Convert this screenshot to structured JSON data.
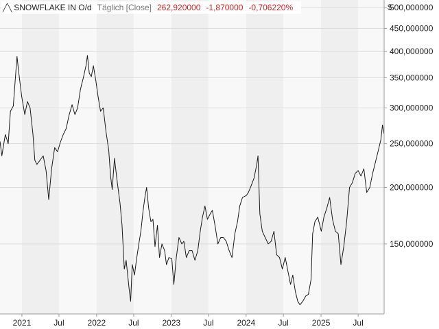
{
  "legend": {
    "symbol": "╱╲",
    "name": "SNOWFLAKE IN O/d",
    "frequency": "Täglich [Close]",
    "last": "262,920000",
    "change": "-1,870000",
    "change_pct": "-0,706220%"
  },
  "currency": "$",
  "colors": {
    "line": "#1a1a1a",
    "band_light": "#f8f8f8",
    "band_dark": "#efefef",
    "grid": "#dcdcdc",
    "negative": "#d11f1f"
  },
  "chart_data": {
    "type": "line",
    "title": "SNOWFLAKE IN O/d",
    "xlabel": "",
    "ylabel": "$",
    "y_scale": "log",
    "ylim": [
      105,
      520
    ],
    "xlim": [
      "2020-09-16",
      "2025-11-05"
    ],
    "grid": true,
    "legend_position": "top-left",
    "x_ticks": [
      {
        "label": "2021",
        "date": "2021-01-01"
      },
      {
        "label": "Jul",
        "date": "2021-07-01"
      },
      {
        "label": "2022",
        "date": "2022-01-01"
      },
      {
        "label": "Jul",
        "date": "2022-07-01"
      },
      {
        "label": "2023",
        "date": "2023-01-01"
      },
      {
        "label": "Jul",
        "date": "2023-07-01"
      },
      {
        "label": "2024",
        "date": "2024-01-01"
      },
      {
        "label": "Jul",
        "date": "2024-07-01"
      },
      {
        "label": "2025",
        "date": "2025-01-01"
      },
      {
        "label": "Jul",
        "date": "2025-07-01"
      }
    ],
    "y_ticks": [
      {
        "label": "500,000000",
        "value": 500
      },
      {
        "label": "450,000000",
        "value": 450
      },
      {
        "label": "400,000000",
        "value": 400
      },
      {
        "label": "350,000000",
        "value": 350
      },
      {
        "label": "300,000000",
        "value": 300
      },
      {
        "label": "250,000000",
        "value": 250
      },
      {
        "label": "200,000000",
        "value": 200
      },
      {
        "label": "150,000000",
        "value": 150
      }
    ],
    "series": [
      {
        "name": "SNOWFLAKE IN O/d",
        "points": [
          [
            "2020-09-16",
            253
          ],
          [
            "2020-09-25",
            235
          ],
          [
            "2020-10-12",
            262
          ],
          [
            "2020-10-26",
            250
          ],
          [
            "2020-11-06",
            295
          ],
          [
            "2020-11-20",
            303
          ],
          [
            "2020-12-08",
            390
          ],
          [
            "2020-12-18",
            355
          ],
          [
            "2020-12-31",
            318
          ],
          [
            "2021-01-15",
            290
          ],
          [
            "2021-01-28",
            310
          ],
          [
            "2021-02-10",
            300
          ],
          [
            "2021-02-24",
            262
          ],
          [
            "2021-03-05",
            230
          ],
          [
            "2021-03-15",
            225
          ],
          [
            "2021-03-31",
            230
          ],
          [
            "2021-04-15",
            235
          ],
          [
            "2021-04-29",
            218
          ],
          [
            "2021-05-12",
            188
          ],
          [
            "2021-05-26",
            220
          ],
          [
            "2021-06-10",
            245
          ],
          [
            "2021-06-24",
            240
          ],
          [
            "2021-07-08",
            252
          ],
          [
            "2021-07-22",
            262
          ],
          [
            "2021-08-05",
            270
          ],
          [
            "2021-08-20",
            290
          ],
          [
            "2021-09-03",
            305
          ],
          [
            "2021-09-17",
            290
          ],
          [
            "2021-09-30",
            300
          ],
          [
            "2021-10-14",
            330
          ],
          [
            "2021-10-28",
            350
          ],
          [
            "2021-11-10",
            372
          ],
          [
            "2021-11-17",
            392
          ],
          [
            "2021-11-26",
            358
          ],
          [
            "2021-12-06",
            352
          ],
          [
            "2021-12-16",
            372
          ],
          [
            "2021-12-28",
            345
          ],
          [
            "2022-01-07",
            320
          ],
          [
            "2022-01-20",
            295
          ],
          [
            "2022-02-02",
            300
          ],
          [
            "2022-02-16",
            265
          ],
          [
            "2022-03-01",
            242
          ],
          [
            "2022-03-10",
            212
          ],
          [
            "2022-03-18",
            198
          ],
          [
            "2022-03-29",
            232
          ],
          [
            "2022-04-12",
            205
          ],
          [
            "2022-04-25",
            185
          ],
          [
            "2022-05-05",
            165
          ],
          [
            "2022-05-16",
            132
          ],
          [
            "2022-05-25",
            138
          ],
          [
            "2022-06-08",
            120
          ],
          [
            "2022-06-16",
            112
          ],
          [
            "2022-06-24",
            135
          ],
          [
            "2022-07-05",
            128
          ],
          [
            "2022-07-14",
            138
          ],
          [
            "2022-07-26",
            150
          ],
          [
            "2022-08-05",
            160
          ],
          [
            "2022-08-16",
            178
          ],
          [
            "2022-08-26",
            192
          ],
          [
            "2022-09-02",
            200
          ],
          [
            "2022-09-12",
            180
          ],
          [
            "2022-09-23",
            168
          ],
          [
            "2022-10-03",
            170
          ],
          [
            "2022-10-13",
            148
          ],
          [
            "2022-10-25",
            165
          ],
          [
            "2022-11-04",
            140
          ],
          [
            "2022-11-16",
            150
          ],
          [
            "2022-11-29",
            145
          ],
          [
            "2022-12-08",
            135
          ],
          [
            "2022-12-20",
            140
          ],
          [
            "2023-01-03",
            139
          ],
          [
            "2023-01-13",
            122
          ],
          [
            "2023-01-25",
            140
          ],
          [
            "2023-02-07",
            155
          ],
          [
            "2023-02-21",
            150
          ],
          [
            "2023-03-03",
            152
          ],
          [
            "2023-03-15",
            140
          ],
          [
            "2023-03-29",
            145
          ],
          [
            "2023-04-12",
            145
          ],
          [
            "2023-04-26",
            138
          ],
          [
            "2023-05-10",
            145
          ],
          [
            "2023-05-22",
            160
          ],
          [
            "2023-06-02",
            172
          ],
          [
            "2023-06-14",
            182
          ],
          [
            "2023-06-26",
            170
          ],
          [
            "2023-07-10",
            175
          ],
          [
            "2023-07-20",
            178
          ],
          [
            "2023-08-02",
            165
          ],
          [
            "2023-08-16",
            150
          ],
          [
            "2023-08-30",
            155
          ],
          [
            "2023-09-12",
            155
          ],
          [
            "2023-09-26",
            152
          ],
          [
            "2023-10-10",
            145
          ],
          [
            "2023-10-24",
            140
          ],
          [
            "2023-11-07",
            158
          ],
          [
            "2023-11-20",
            168
          ],
          [
            "2023-12-01",
            182
          ],
          [
            "2023-12-14",
            190
          ],
          [
            "2024-01-02",
            192
          ],
          [
            "2024-01-12",
            195
          ],
          [
            "2024-01-26",
            202
          ],
          [
            "2024-02-09",
            210
          ],
          [
            "2024-02-22",
            225
          ],
          [
            "2024-02-28",
            235
          ],
          [
            "2024-03-08",
            175
          ],
          [
            "2024-03-20",
            160
          ],
          [
            "2024-04-03",
            155
          ],
          [
            "2024-04-18",
            150
          ],
          [
            "2024-05-02",
            152
          ],
          [
            "2024-05-16",
            160
          ],
          [
            "2024-05-29",
            142
          ],
          [
            "2024-06-12",
            140
          ],
          [
            "2024-06-26",
            132
          ],
          [
            "2024-07-10",
            140
          ],
          [
            "2024-07-24",
            130
          ],
          [
            "2024-08-05",
            122
          ],
          [
            "2024-08-16",
            128
          ],
          [
            "2024-08-28",
            118
          ],
          [
            "2024-09-09",
            112
          ],
          [
            "2024-09-20",
            110
          ],
          [
            "2024-10-04",
            112
          ],
          [
            "2024-10-18",
            115
          ],
          [
            "2024-10-31",
            116
          ],
          [
            "2024-11-13",
            125
          ],
          [
            "2024-11-21",
            158
          ],
          [
            "2024-12-02",
            168
          ],
          [
            "2024-12-16",
            172
          ],
          [
            "2025-01-02",
            160
          ],
          [
            "2025-01-15",
            172
          ],
          [
            "2025-01-29",
            180
          ],
          [
            "2025-02-12",
            190
          ],
          [
            "2025-02-26",
            170
          ],
          [
            "2025-03-12",
            160
          ],
          [
            "2025-03-26",
            158
          ],
          [
            "2025-04-08",
            135
          ],
          [
            "2025-04-22",
            148
          ],
          [
            "2025-05-06",
            168
          ],
          [
            "2025-05-20",
            200
          ],
          [
            "2025-06-03",
            205
          ],
          [
            "2025-06-17",
            215
          ],
          [
            "2025-07-01",
            218
          ],
          [
            "2025-07-15",
            212
          ],
          [
            "2025-07-29",
            220
          ],
          [
            "2025-08-12",
            195
          ],
          [
            "2025-08-27",
            200
          ],
          [
            "2025-09-10",
            215
          ],
          [
            "2025-09-24",
            228
          ],
          [
            "2025-10-08",
            242
          ],
          [
            "2025-10-20",
            255
          ],
          [
            "2025-10-28",
            275
          ],
          [
            "2025-11-04",
            262.92
          ]
        ]
      }
    ]
  }
}
